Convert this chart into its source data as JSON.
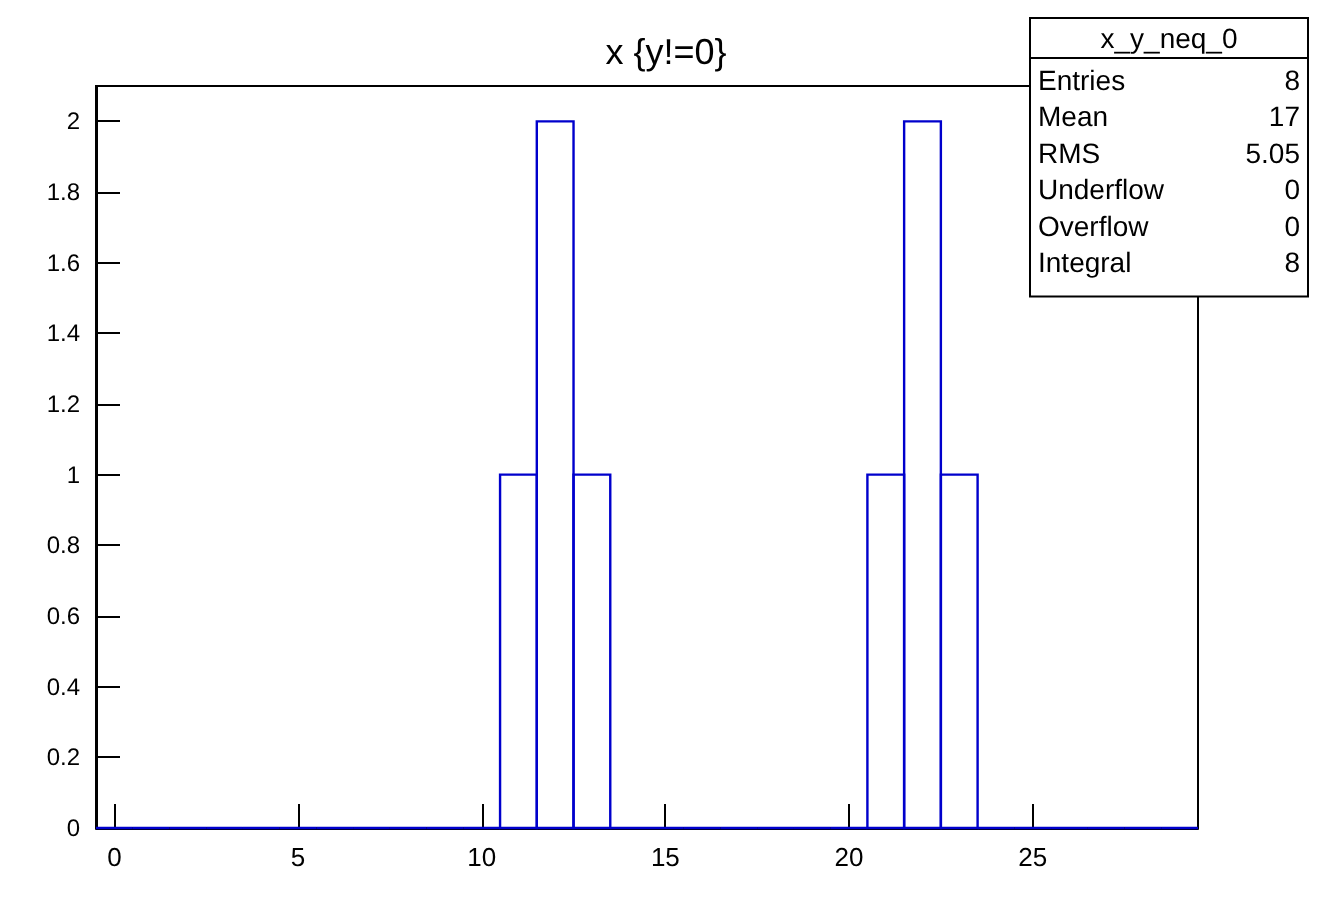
{
  "chart_data": {
    "type": "histogram",
    "title": "x {y!=0}",
    "bins": [
      -0.5,
      0.5,
      1.5,
      2.5,
      3.5,
      4.5,
      5.5,
      6.5,
      7.5,
      8.5,
      9.5,
      10.5,
      11.5,
      12.5,
      13.5,
      14.5,
      15.5,
      16.5,
      17.5,
      18.5,
      19.5,
      20.5,
      21.5,
      22.5,
      23.5,
      24.5,
      25.5,
      26.5,
      27.5,
      28.5,
      29.5
    ],
    "values": [
      0,
      0,
      0,
      0,
      0,
      0,
      0,
      0,
      0,
      0,
      0,
      1,
      2,
      1,
      0,
      0,
      0,
      0,
      0,
      0,
      0,
      1,
      2,
      1,
      0,
      0,
      0,
      0,
      0,
      0
    ],
    "color": "#0000cc",
    "xlim": [
      -0.5,
      29.5
    ],
    "xticks": [
      0,
      5,
      10,
      15,
      20,
      25
    ],
    "ylim": [
      0,
      2.1
    ],
    "yticks": [
      0,
      0.2,
      0.4,
      0.6,
      0.8,
      1,
      1.2,
      1.4,
      1.6,
      1.8,
      2
    ],
    "annotations": [
      "x_y_neq_0",
      "Entries",
      "8",
      "Mean",
      "17",
      "RMS",
      "5.05",
      "Underflow",
      "0",
      "Overflow",
      "0",
      "Integral",
      "8"
    ]
  }
}
